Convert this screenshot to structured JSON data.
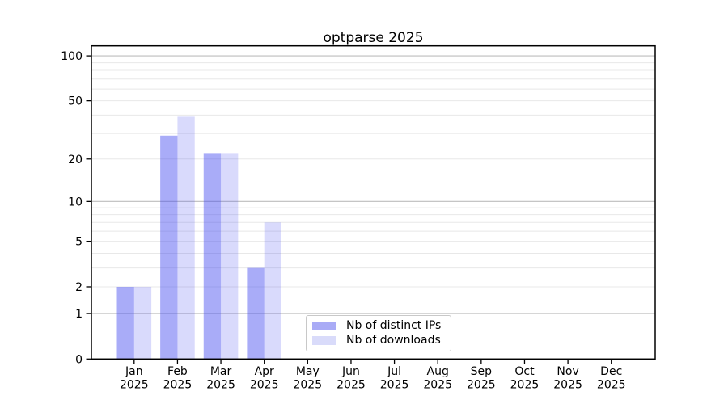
{
  "chart_data": {
    "type": "bar",
    "title": "optparse 2025",
    "categories": [
      "Jan",
      "Feb",
      "Mar",
      "Apr",
      "May",
      "Jun",
      "Jul",
      "Aug",
      "Sep",
      "Oct",
      "Nov",
      "Dec"
    ],
    "x_tick_year": "2025",
    "series": [
      {
        "name": "Nb of distinct IPs",
        "color": "rgba(65,70,240,0.45)",
        "legend_hex": "#a9abf6",
        "values": [
          2,
          29,
          22,
          3,
          0,
          0,
          0,
          0,
          0,
          0,
          0,
          0
        ]
      },
      {
        "name": "Nb of downloads",
        "color": "rgba(65,70,240,0.2)",
        "legend_hex": "#d9dbfa",
        "values": [
          2,
          39,
          22,
          7,
          0,
          0,
          0,
          0,
          0,
          0,
          0,
          0
        ]
      }
    ],
    "y_scale": "log1p",
    "ylim": [
      0,
      116
    ],
    "y_ticks": [
      0,
      1,
      2,
      5,
      10,
      20,
      50,
      100
    ],
    "grid": {
      "major_lines": [
        1,
        10,
        100
      ],
      "minor_lines": [
        2,
        3,
        4,
        5,
        6,
        7,
        8,
        9,
        20,
        30,
        40,
        50,
        60,
        70,
        80,
        90
      ],
      "major_color": "#bdbdbd",
      "minor_color": "#e8e8e8"
    },
    "legend_position": "inside lower center",
    "axis_color": "#000000",
    "background_color": "#ffffff"
  }
}
